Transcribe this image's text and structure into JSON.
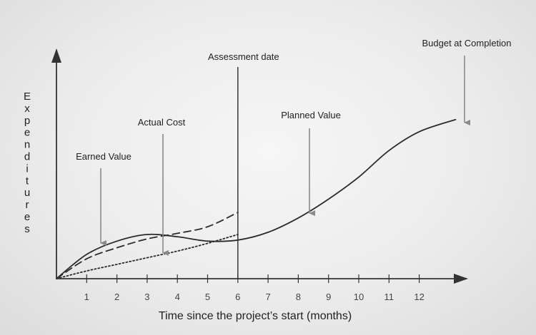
{
  "chart_data": {
    "type": "line",
    "xlabel": "Time since the project’s start (months)",
    "ylabel": "Expenditures",
    "x_ticks": [
      "1",
      "2",
      "3",
      "4",
      "5",
      "6",
      "7",
      "8",
      "9",
      "10",
      "11",
      "12"
    ],
    "xlim": [
      0,
      13.5
    ],
    "ylim": [
      0,
      10
    ],
    "assessment": {
      "label": "Assessment date",
      "x": 6
    },
    "series": [
      {
        "name": "Planned Value",
        "style": "solid",
        "points": [
          [
            0,
            0
          ],
          [
            1,
            1.1
          ],
          [
            2,
            1.7
          ],
          [
            3,
            2.0
          ],
          [
            4,
            1.9
          ],
          [
            5,
            1.7
          ],
          [
            6,
            1.75
          ],
          [
            7,
            2.1
          ],
          [
            8,
            2.75
          ],
          [
            9,
            3.6
          ],
          [
            10,
            4.6
          ],
          [
            11,
            5.8
          ],
          [
            12,
            6.65
          ],
          [
            13.2,
            7.2
          ]
        ]
      },
      {
        "name": "Actual Cost",
        "style": "dashed",
        "points": [
          [
            0,
            0
          ],
          [
            1,
            0.9
          ],
          [
            2,
            1.4
          ],
          [
            3,
            1.8
          ],
          [
            4,
            2.05
          ],
          [
            5,
            2.35
          ],
          [
            6,
            3.0
          ]
        ]
      },
      {
        "name": "Earned Value",
        "style": "dotted",
        "points": [
          [
            0,
            0
          ],
          [
            1,
            0.35
          ],
          [
            2,
            0.65
          ],
          [
            3,
            0.95
          ],
          [
            4,
            1.25
          ],
          [
            5,
            1.6
          ],
          [
            6,
            2.0
          ]
        ]
      }
    ],
    "annotations": [
      {
        "label": "Earned Value",
        "target": [
          1.6,
          1.55
        ]
      },
      {
        "label": "Actual Cost",
        "target": [
          3.7,
          1.1
        ]
      },
      {
        "label": "Planned Value",
        "target": [
          8.5,
          2.9
        ]
      },
      {
        "label": "Budget at Completion",
        "target": [
          13.0,
          7.0
        ]
      }
    ],
    "colors": {
      "line": "#2b2b2b",
      "axis": "#333333",
      "arrow": "#8a8a8a"
    }
  }
}
